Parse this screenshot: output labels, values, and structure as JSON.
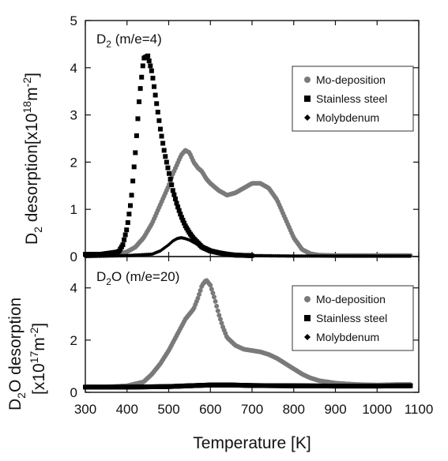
{
  "chart_data": [
    {
      "type": "scatter",
      "panel": "top",
      "title_main": "D",
      "title_sub": "2",
      "title_rest": " (m/e=4)",
      "ylabel_main": "D",
      "ylabel_sub": "2",
      "ylabel_mid": " desorption[x10",
      "ylabel_sup1": "18",
      "ylabel_mid2": "m",
      "ylabel_sup2": "-2",
      "ylabel_end": "]",
      "xlim": [
        300,
        1100
      ],
      "ylim": [
        0,
        5
      ],
      "yticks": [
        "0",
        "1",
        "2",
        "3",
        "4",
        "5"
      ],
      "legend_position": "right",
      "series": [
        {
          "name": "Mo-deposition",
          "marker": "circle",
          "color": "#7a7a7a",
          "x": [
            300,
            340,
            380,
            400,
            420,
            440,
            460,
            480,
            500,
            510,
            520,
            530,
            540,
            550,
            560,
            570,
            580,
            590,
            600,
            620,
            640,
            660,
            680,
            700,
            720,
            740,
            760,
            780,
            800,
            820,
            840,
            860,
            900,
            950,
            1000,
            1050,
            1080
          ],
          "y": [
            0.02,
            0.03,
            0.05,
            0.1,
            0.2,
            0.4,
            0.7,
            1.1,
            1.5,
            1.75,
            1.95,
            2.15,
            2.25,
            2.2,
            2.0,
            1.88,
            1.8,
            1.65,
            1.55,
            1.4,
            1.3,
            1.35,
            1.45,
            1.55,
            1.55,
            1.45,
            1.2,
            0.8,
            0.4,
            0.15,
            0.06,
            0.03,
            0.02,
            0.02,
            0.02,
            0.02,
            0.02
          ]
        },
        {
          "name": "Stainless steel",
          "marker": "square",
          "color": "#000000",
          "x": [
            300,
            340,
            380,
            390,
            400,
            410,
            420,
            430,
            440,
            450,
            460,
            470,
            480,
            490,
            500,
            510,
            520,
            530,
            540,
            550,
            560,
            580,
            600,
            620,
            640,
            660,
            700
          ],
          "y": [
            0.05,
            0.05,
            0.1,
            0.25,
            0.6,
            1.2,
            2.2,
            3.4,
            4.2,
            4.25,
            3.9,
            3.3,
            2.7,
            2.2,
            1.8,
            1.4,
            1.1,
            0.85,
            0.65,
            0.5,
            0.38,
            0.2,
            0.12,
            0.08,
            0.05,
            0.03,
            0.02
          ]
        },
        {
          "name": "Molybdenum",
          "marker": "diamond",
          "color": "#000000",
          "x": [
            300,
            400,
            460,
            480,
            500,
            510,
            520,
            530,
            540,
            550,
            560,
            570,
            580,
            600,
            620,
            650,
            700,
            800,
            900,
            1000,
            1080
          ],
          "y": [
            0.0,
            0.02,
            0.05,
            0.12,
            0.25,
            0.33,
            0.38,
            0.4,
            0.38,
            0.35,
            0.3,
            0.25,
            0.2,
            0.12,
            0.08,
            0.04,
            0.02,
            0.01,
            0.01,
            0.01,
            0.01
          ]
        }
      ]
    },
    {
      "type": "scatter",
      "panel": "bottom",
      "title_main": "D",
      "title_sub": "2",
      "title_rest": "O (m/e=20)",
      "ylabel_line1_main": "D",
      "ylabel_line1_sub": "2",
      "ylabel_line1_rest": "O desorption",
      "ylabel_line2_a": "[x10",
      "ylabel_line2_sup1": "17",
      "ylabel_line2_b": "m",
      "ylabel_line2_sup2": "-2",
      "ylabel_line2_c": "]",
      "xlabel": "Temperature [K]",
      "xlim": [
        300,
        1100
      ],
      "ylim": [
        0,
        5.2
      ],
      "yticks": [
        "0",
        "2",
        "4"
      ],
      "xticks": [
        "300",
        "400",
        "500",
        "600",
        "700",
        "800",
        "900",
        "1000",
        "1100"
      ],
      "legend_position": "right",
      "series": [
        {
          "name": "Mo-deposition",
          "marker": "circle",
          "color": "#7a7a7a",
          "x": [
            300,
            350,
            400,
            440,
            460,
            480,
            500,
            520,
            540,
            550,
            560,
            570,
            580,
            590,
            600,
            610,
            620,
            630,
            640,
            660,
            680,
            700,
            720,
            740,
            760,
            780,
            800,
            820,
            840,
            860,
            900,
            950,
            1000,
            1050,
            1080
          ],
          "y": [
            0.2,
            0.2,
            0.25,
            0.4,
            0.7,
            1.1,
            1.6,
            2.2,
            2.8,
            3.0,
            3.2,
            3.6,
            4.1,
            4.3,
            4.1,
            3.6,
            3.0,
            2.5,
            2.1,
            1.8,
            1.65,
            1.6,
            1.55,
            1.45,
            1.3,
            1.1,
            0.9,
            0.7,
            0.55,
            0.45,
            0.35,
            0.3,
            0.28,
            0.3,
            0.3
          ]
        },
        {
          "name": "Stainless steel",
          "marker": "square",
          "color": "#000000",
          "x": [
            300,
            400,
            500,
            550,
            600,
            650,
            700,
            800,
            900,
            1000,
            1080
          ],
          "y": [
            0.2,
            0.2,
            0.22,
            0.25,
            0.28,
            0.28,
            0.26,
            0.25,
            0.24,
            0.24,
            0.25
          ]
        },
        {
          "name": "Molybdenum",
          "marker": "diamond",
          "color": "#000000",
          "x": [
            300,
            400,
            500,
            550,
            600,
            650,
            700,
            800,
            900,
            1000,
            1080
          ],
          "y": [
            0.22,
            0.22,
            0.25,
            0.28,
            0.3,
            0.3,
            0.28,
            0.26,
            0.25,
            0.25,
            0.26
          ]
        }
      ]
    }
  ]
}
